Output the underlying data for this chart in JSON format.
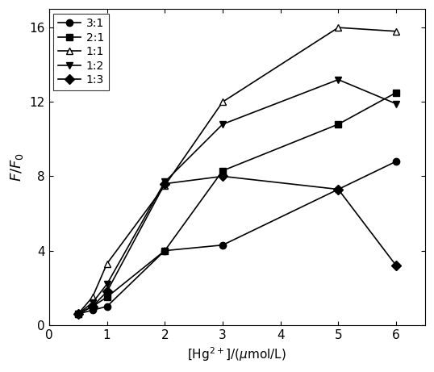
{
  "series": [
    {
      "label": "3:1",
      "marker": "o",
      "filled": true,
      "x": [
        0.5,
        0.75,
        1.0,
        2.0,
        3.0,
        5.0,
        6.0
      ],
      "y": [
        0.6,
        0.8,
        1.0,
        4.0,
        4.3,
        7.3,
        8.8
      ]
    },
    {
      "label": "2:1",
      "marker": "s",
      "filled": true,
      "x": [
        0.5,
        0.75,
        1.0,
        2.0,
        3.0,
        5.0,
        6.0
      ],
      "y": [
        0.6,
        1.0,
        1.5,
        4.0,
        8.3,
        10.8,
        12.5
      ]
    },
    {
      "label": "1:1",
      "marker": "^",
      "filled": false,
      "x": [
        0.5,
        0.75,
        1.0,
        2.0,
        3.0,
        5.0,
        6.0
      ],
      "y": [
        0.6,
        1.5,
        3.3,
        7.5,
        12.0,
        16.0,
        15.8
      ]
    },
    {
      "label": "1:2",
      "marker": "v",
      "filled": true,
      "x": [
        0.5,
        0.75,
        1.0,
        2.0,
        3.0,
        5.0,
        6.0
      ],
      "y": [
        0.6,
        1.2,
        2.2,
        7.7,
        10.8,
        13.2,
        11.9
      ]
    },
    {
      "label": "1:3",
      "marker": "D",
      "filled": true,
      "x": [
        0.5,
        0.75,
        1.0,
        2.0,
        3.0,
        5.0,
        6.0
      ],
      "y": [
        0.6,
        1.0,
        1.8,
        7.6,
        8.0,
        7.3,
        3.2
      ]
    }
  ],
  "ylabel": "$F/F_0$",
  "xlim": [
    0,
    6.5
  ],
  "ylim": [
    0,
    17
  ],
  "xticks": [
    0,
    1,
    2,
    3,
    4,
    5,
    6
  ],
  "yticks": [
    0,
    4,
    8,
    12,
    16
  ],
  "color": "black",
  "linewidth": 1.2,
  "markersize": 6
}
